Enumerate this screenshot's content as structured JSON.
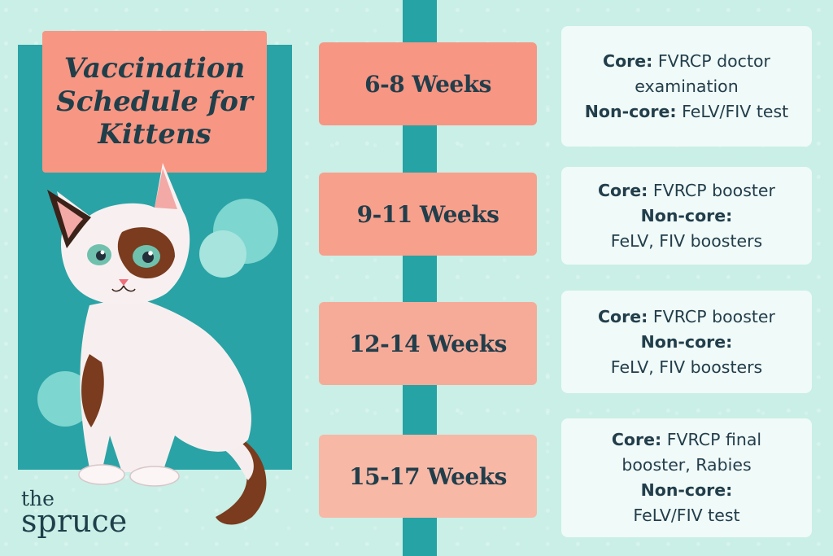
{
  "title": "Vaccination Schedule for Kittens",
  "brand": {
    "line1": "the",
    "line2": "spruce"
  },
  "colors": {
    "background": "#c9efe6",
    "teal": "#2aa3a6",
    "stage_fills": [
      "#f79683",
      "#f7a08c",
      "#f6ab98",
      "#f7b8a6"
    ],
    "text": "#223e4b",
    "info_card": "#f0faf8"
  },
  "schedule": [
    {
      "stage": "6-8 Weeks",
      "lines": [
        {
          "label": "Core:",
          "text": " FVRCP doctor"
        },
        {
          "label": "",
          "text": "examination"
        },
        {
          "label": "Non-core:",
          "text": " FeLV/FIV test"
        }
      ]
    },
    {
      "stage": "9-11 Weeks",
      "lines": [
        {
          "label": "Core:",
          "text": " FVRCP booster"
        },
        {
          "label": "Non-core:",
          "text": ""
        },
        {
          "label": "",
          "text": "FeLV, FIV boosters"
        }
      ]
    },
    {
      "stage": "12-14 Weeks",
      "lines": [
        {
          "label": "Core:",
          "text": " FVRCP booster"
        },
        {
          "label": "Non-core:",
          "text": ""
        },
        {
          "label": "",
          "text": "FeLV, FIV boosters"
        }
      ]
    },
    {
      "stage": "15-17 Weeks",
      "lines": [
        {
          "label": "Core:",
          "text": " FVRCP final"
        },
        {
          "label": "",
          "text": "booster, Rabies"
        },
        {
          "label": "Non-core:",
          "text": ""
        },
        {
          "label": "",
          "text": "FeLV/FIV test"
        }
      ]
    }
  ],
  "illustration": "kitten-illustration"
}
